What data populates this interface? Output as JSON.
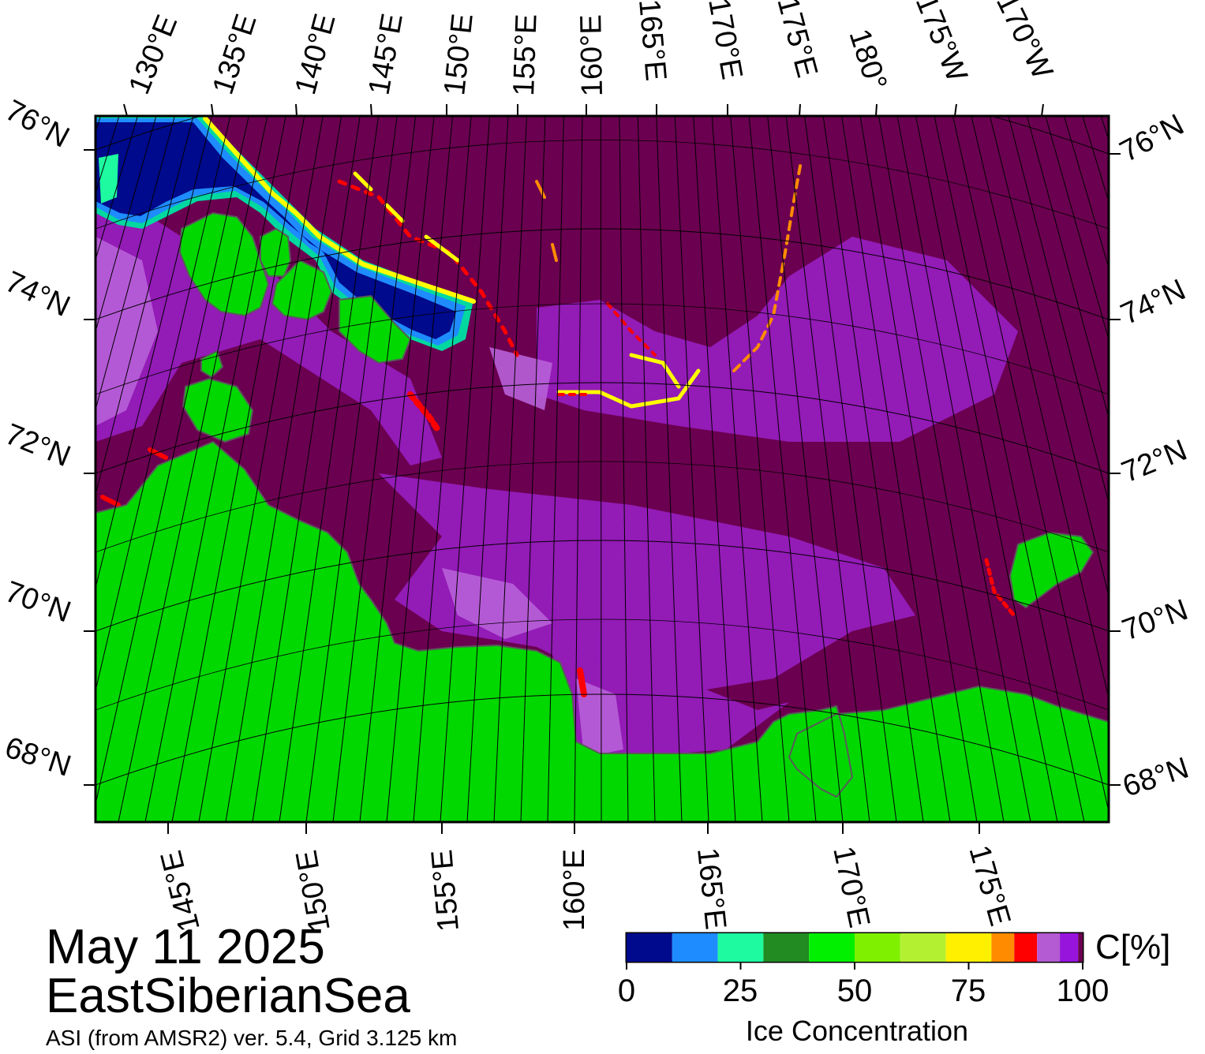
{
  "map": {
    "date": "May 11 2025",
    "region": "EastSiberianSea",
    "source": "ASI (from AMSR2) ver. 5.4,  Grid 3.125 km",
    "colors": {
      "ocean_ice_full": "#6b0050",
      "ice_high": "#9a20c8",
      "ice_mid": "#b860d8",
      "land": "#00d800",
      "land_coast_gray": "#8a8a8a",
      "open_water": "#00107a",
      "grid": "#000000"
    },
    "top_lon_labels": [
      "130°E",
      "135°E",
      "140°E",
      "145°E",
      "150°E",
      "155°E",
      "160°E",
      "165°E",
      "170°E",
      "175°E",
      "180°",
      "175°W",
      "170°W"
    ],
    "bottom_lon_labels": [
      "145°E",
      "150°E",
      "155°E",
      "160°E",
      "165°E",
      "170°E",
      "175°E"
    ],
    "left_lat_labels": [
      "76°N",
      "74°N",
      "72°N",
      "70°N",
      "68°N"
    ],
    "right_lat_labels": [
      "76°N",
      "74°N",
      "72°N",
      "70°N",
      "68°N"
    ]
  },
  "colorbar": {
    "unit": "C[%]",
    "title": "Ice Concentration",
    "tick_labels": [
      "0",
      "25",
      "50",
      "75",
      "100"
    ],
    "colors": [
      "#000a8c",
      "#1e8cff",
      "#1efaa0",
      "#228b22",
      "#00f000",
      "#7ff000",
      "#b4f032",
      "#fff000",
      "#ff8c00",
      "#ff0000",
      "#b45ad2",
      "#9614dc",
      "#6b0050"
    ]
  }
}
